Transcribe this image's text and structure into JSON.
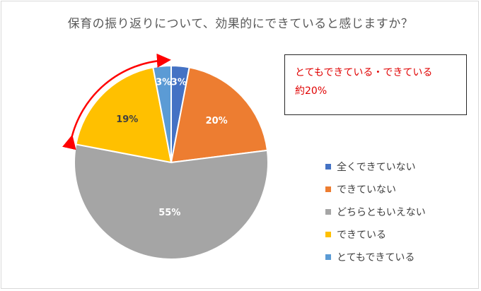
{
  "chart_data": {
    "type": "pie",
    "title": "保育の振り返りについて、効果的にできていると感じますか？",
    "categories": [
      "全くできていない",
      "できていない",
      "どちらともいえない",
      "できている",
      "とてもできている"
    ],
    "values": [
      3,
      20,
      55,
      19,
      3
    ],
    "data_labels": [
      "3%",
      "20%",
      "55%",
      "19%",
      "3%"
    ],
    "colors": [
      "#4472c4",
      "#ed7d31",
      "#a5a5a5",
      "#ffc000",
      "#5b9bd5"
    ],
    "label_colors": [
      "#ffffff",
      "#ffffff",
      "#ffffff",
      "#404040",
      "#ffffff"
    ],
    "legend_position": "right",
    "arrow_color": "#ff0000"
  },
  "annotation": {
    "line1": "とてもできている・できている",
    "line2": "約20%"
  }
}
